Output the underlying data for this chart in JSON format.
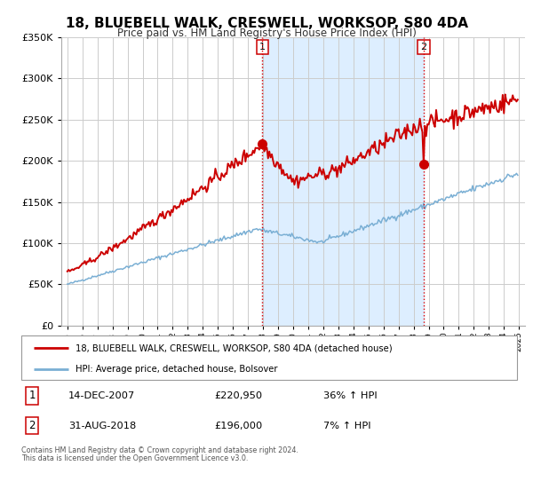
{
  "title": "18, BLUEBELL WALK, CRESWELL, WORKSOP, S80 4DA",
  "subtitle": "Price paid vs. HM Land Registry's House Price Index (HPI)",
  "legend_line1": "18, BLUEBELL WALK, CRESWELL, WORKSOP, S80 4DA (detached house)",
  "legend_line2": "HPI: Average price, detached house, Bolsover",
  "footnote1": "Contains HM Land Registry data © Crown copyright and database right 2024.",
  "footnote2": "This data is licensed under the Open Government Licence v3.0.",
  "sale1_label": "1",
  "sale1_date": "14-DEC-2007",
  "sale1_price": "£220,950",
  "sale1_hpi": "36% ↑ HPI",
  "sale2_label": "2",
  "sale2_date": "31-AUG-2018",
  "sale2_price": "£196,000",
  "sale2_hpi": "7% ↑ HPI",
  "sale1_x": 2007.96,
  "sale1_y": 220950,
  "sale2_x": 2018.67,
  "sale2_y": 196000,
  "vline1_x": 2007.96,
  "vline2_x": 2018.67,
  "ylim": [
    0,
    350000
  ],
  "xlim": [
    1994.6,
    2025.4
  ],
  "yticks": [
    0,
    50000,
    100000,
    150000,
    200000,
    250000,
    300000,
    350000
  ],
  "xticks": [
    1995,
    1996,
    1997,
    1998,
    1999,
    2000,
    2001,
    2002,
    2003,
    2004,
    2005,
    2006,
    2007,
    2008,
    2009,
    2010,
    2011,
    2012,
    2013,
    2014,
    2015,
    2016,
    2017,
    2018,
    2019,
    2020,
    2021,
    2022,
    2023,
    2024,
    2025
  ],
  "red_color": "#cc0000",
  "blue_color": "#7aafd4",
  "shade_color": "#ddeeff",
  "grid_color": "#cccccc",
  "vline_color": "#dd0000"
}
